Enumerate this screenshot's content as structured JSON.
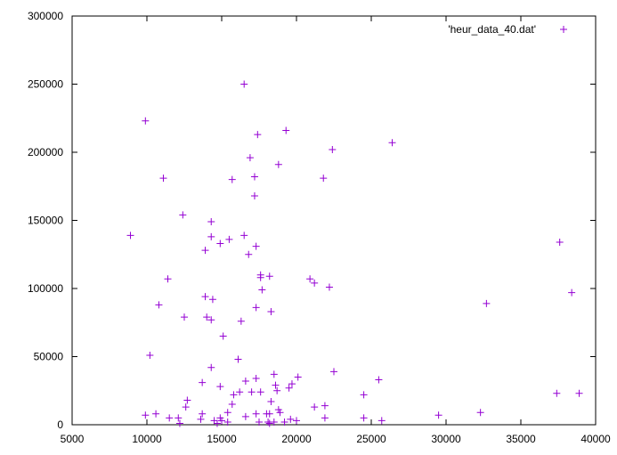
{
  "chart_data": {
    "type": "scatter",
    "title": "",
    "xlabel": "",
    "ylabel": "",
    "xlim": [
      5000,
      40000
    ],
    "ylim": [
      0,
      300000
    ],
    "x_ticks": [
      "5000",
      "10000",
      "15000",
      "20000",
      "25000",
      "30000",
      "35000",
      "40000"
    ],
    "y_ticks": [
      "0",
      "50000",
      "100000",
      "150000",
      "200000",
      "250000",
      "300000"
    ],
    "grid": false,
    "legend_position": "top-right",
    "colors": {
      "series": "#9400d3",
      "axis": "#000000"
    },
    "series": [
      {
        "name": "'heur_data_40.dat'",
        "points": [
          [
            16500,
            250000
          ],
          [
            9900,
            223000
          ],
          [
            19300,
            216000
          ],
          [
            17400,
            213000
          ],
          [
            26400,
            207000
          ],
          [
            22400,
            202000
          ],
          [
            16900,
            196000
          ],
          [
            18800,
            191000
          ],
          [
            17200,
            182000
          ],
          [
            11100,
            181000
          ],
          [
            15700,
            180000
          ],
          [
            21800,
            181000
          ],
          [
            17200,
            168000
          ],
          [
            12400,
            154000
          ],
          [
            14300,
            149000
          ],
          [
            8900,
            139000
          ],
          [
            14300,
            138000
          ],
          [
            16500,
            139000
          ],
          [
            15500,
            136000
          ],
          [
            14900,
            133000
          ],
          [
            17300,
            131000
          ],
          [
            37600,
            134000
          ],
          [
            13900,
            128000
          ],
          [
            16800,
            125000
          ],
          [
            17600,
            110000
          ],
          [
            17600,
            108000
          ],
          [
            18200,
            109000
          ],
          [
            20900,
            107000
          ],
          [
            21200,
            104000
          ],
          [
            17700,
            99000
          ],
          [
            22200,
            101000
          ],
          [
            11400,
            107000
          ],
          [
            38400,
            97000
          ],
          [
            13900,
            94000
          ],
          [
            14400,
            92000
          ],
          [
            10800,
            88000
          ],
          [
            32700,
            89000
          ],
          [
            17300,
            86000
          ],
          [
            18300,
            83000
          ],
          [
            12500,
            79000
          ],
          [
            14000,
            79000
          ],
          [
            14300,
            77000
          ],
          [
            16300,
            76000
          ],
          [
            15100,
            65000
          ],
          [
            10200,
            51000
          ],
          [
            16100,
            48000
          ],
          [
            14300,
            42000
          ],
          [
            22500,
            39000
          ],
          [
            20100,
            35000
          ],
          [
            18500,
            37000
          ],
          [
            17300,
            34000
          ],
          [
            19700,
            30000
          ],
          [
            18600,
            29000
          ],
          [
            13700,
            31000
          ],
          [
            25500,
            33000
          ],
          [
            19500,
            27000
          ],
          [
            18700,
            25000
          ],
          [
            16600,
            32000
          ],
          [
            14900,
            28000
          ],
          [
            17600,
            24000
          ],
          [
            16200,
            24000
          ],
          [
            17000,
            24000
          ],
          [
            15800,
            22000
          ],
          [
            24500,
            22000
          ],
          [
            37400,
            23000
          ],
          [
            38900,
            23000
          ],
          [
            12700,
            18000
          ],
          [
            18300,
            17000
          ],
          [
            15700,
            15000
          ],
          [
            21900,
            14000
          ],
          [
            21200,
            13000
          ],
          [
            12600,
            13000
          ],
          [
            18800,
            11000
          ],
          [
            15400,
            9000
          ],
          [
            18900,
            9000
          ],
          [
            10600,
            8000
          ],
          [
            13700,
            8000
          ],
          [
            17300,
            8000
          ],
          [
            18000,
            8000
          ],
          [
            18200,
            8000
          ],
          [
            32300,
            9000
          ],
          [
            9900,
            7000
          ],
          [
            29500,
            7000
          ],
          [
            24500,
            5000
          ],
          [
            16600,
            6000
          ],
          [
            11500,
            5000
          ],
          [
            12100,
            5000
          ],
          [
            14900,
            5000
          ],
          [
            21900,
            5000
          ],
          [
            13600,
            4000
          ],
          [
            19600,
            4000
          ],
          [
            14500,
            3000
          ],
          [
            15000,
            3000
          ],
          [
            15400,
            2000
          ],
          [
            20000,
            3000
          ],
          [
            25700,
            3000
          ],
          [
            17500,
            2000
          ],
          [
            18100,
            2000
          ],
          [
            18500,
            2000
          ],
          [
            19200,
            2000
          ],
          [
            14700,
            1000
          ],
          [
            12200,
            1000
          ],
          [
            18200,
            1000
          ]
        ]
      }
    ]
  }
}
